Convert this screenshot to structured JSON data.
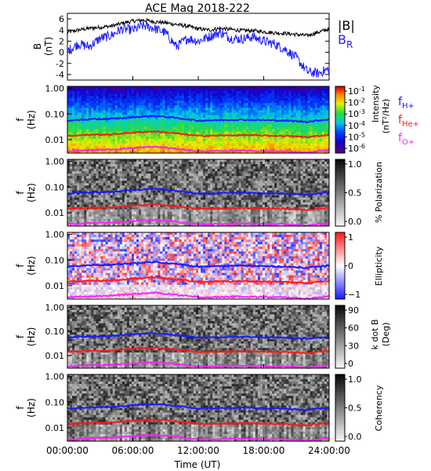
{
  "figure": {
    "title": "ACE Mag 2018-222",
    "xaxis_title": "Time (UT)",
    "time_ticks": [
      "00:00:00",
      "06:00:00",
      "12:00:00",
      "18:00:00",
      "24:00:00"
    ]
  },
  "colors": {
    "B_total": "#000000",
    "B_R": "#1f1fff",
    "f_H": "#1a1aff",
    "f_He": "#ff1a1a",
    "f_O": "#ff22ff"
  },
  "chart_data": [
    {
      "type": "line",
      "panel": "field",
      "ylabel": "B",
      "yunit": "(nT)",
      "ylim": [
        -5,
        7
      ],
      "yticks": [
        "6",
        "4",
        "2",
        "0",
        "-2",
        "-4"
      ],
      "ytick_values": [
        6,
        4,
        2,
        0,
        -2,
        -4
      ],
      "xlim": [
        0,
        24
      ],
      "legend": [
        "|B|",
        "B_R"
      ],
      "legend_labels": {
        "B": "|B|",
        "BR_main": "B",
        "BR_sub": "R"
      },
      "x": [
        0,
        1,
        2,
        3,
        4,
        5,
        6,
        7,
        8,
        9,
        10,
        11,
        12,
        13,
        14,
        15,
        16,
        17,
        18,
        19,
        20,
        21,
        22,
        23,
        24
      ],
      "series": [
        {
          "name": "|B|",
          "color": "#000000",
          "values": [
            3.6,
            4.0,
            4.3,
            4.5,
            4.7,
            5.2,
            5.6,
            5.8,
            5.5,
            5.3,
            5.0,
            4.7,
            4.2,
            4.0,
            4.3,
            4.1,
            3.9,
            3.9,
            3.7,
            3.5,
            3.4,
            3.2,
            3.0,
            3.6,
            4.2
          ]
        },
        {
          "name": "B_R",
          "color": "#1f1fff",
          "values": [
            0.2,
            1.5,
            1.0,
            2.5,
            3.0,
            4.2,
            4.0,
            4.8,
            4.3,
            3.5,
            1.0,
            2.5,
            2.0,
            2.8,
            3.6,
            2.5,
            2.4,
            2.8,
            2.0,
            1.5,
            0.5,
            -1.0,
            -3.5,
            -3.8,
            -3.0
          ]
        }
      ]
    },
    {
      "type": "heatmap",
      "panel": "intensity",
      "ylabel": "f",
      "yunit": "(Hz)",
      "yticks": [
        "1.00",
        "0.10",
        "0.01"
      ],
      "scale": "log",
      "colorbar_label_top": "Intensity",
      "colorbar_label_bottom": "(nT²/Hz)",
      "colorbar_ticks": [
        {
          "base": "10",
          "exp": "-1"
        },
        {
          "base": "10",
          "exp": "-2"
        },
        {
          "base": "10",
          "exp": "-3"
        },
        {
          "base": "10",
          "exp": "-4"
        },
        {
          "base": "10",
          "exp": "-5"
        },
        {
          "base": "10",
          "exp": "-6"
        }
      ],
      "legend": [
        {
          "main": "f",
          "sub": "H+",
          "color": "#1a1aff"
        },
        {
          "main": "f",
          "sub": "He+",
          "color": "#ff1a1a"
        },
        {
          "main": "f",
          "sub": "O+",
          "color": "#ff22ff"
        }
      ]
    },
    {
      "type": "heatmap",
      "panel": "polarization",
      "ylabel": "f",
      "yunit": "(Hz)",
      "yticks": [
        "1.00",
        "0.10",
        "0.01"
      ],
      "colorbar_label": "% Polarization",
      "colorbar_ticks": [
        "1.0",
        "0.5",
        "0.0"
      ]
    },
    {
      "type": "heatmap",
      "panel": "ellipticity",
      "ylabel": "f",
      "yunit": "(Hz)",
      "yticks": [
        "1.00",
        "0.10",
        "0.01"
      ],
      "colorbar_label": "Ellipticity",
      "colorbar_ticks": [
        "1",
        "0",
        "−1"
      ]
    },
    {
      "type": "heatmap",
      "panel": "kdotb",
      "ylabel": "f",
      "yunit": "(Hz)",
      "yticks": [
        "1.00",
        "0.10",
        "0.01"
      ],
      "colorbar_label_top": "k dot B",
      "colorbar_label_bottom": "(Deg)",
      "colorbar_ticks": [
        "90",
        "60",
        "30",
        "0"
      ]
    },
    {
      "type": "heatmap",
      "panel": "coherency",
      "ylabel": "f",
      "yunit": "(Hz)",
      "yticks": [
        "1.00",
        "0.10",
        "0.01"
      ],
      "colorbar_label": "Coherency",
      "colorbar_ticks": [
        "1.0",
        "0.5",
        "0.0"
      ]
    }
  ],
  "cyclotron": {
    "x": [
      0,
      2,
      4,
      6,
      8,
      10,
      12,
      14,
      16,
      18,
      20,
      22,
      24
    ],
    "fH": [
      0.055,
      0.062,
      0.065,
      0.075,
      0.085,
      0.07,
      0.055,
      0.058,
      0.06,
      0.058,
      0.055,
      0.05,
      0.062
    ],
    "fHe": [
      0.014,
      0.0155,
      0.016,
      0.019,
      0.021,
      0.0175,
      0.014,
      0.0145,
      0.015,
      0.0145,
      0.014,
      0.0125,
      0.0155
    ],
    "fO": [
      0.0035,
      0.0039,
      0.0041,
      0.0047,
      0.0053,
      0.0044,
      0.0035,
      0.0036,
      0.0038,
      0.0036,
      0.0035,
      0.0031,
      0.0039
    ]
  }
}
